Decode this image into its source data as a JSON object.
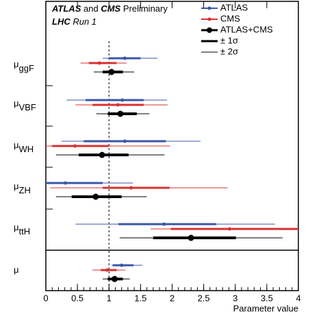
{
  "chart_data": {
    "type": "interval",
    "title_parts": [
      "ATLAS",
      "and",
      "CMS",
      "Preliminary"
    ],
    "subtitle_parts": [
      "LHC",
      "Run 1"
    ],
    "x_label": "Parameter value",
    "category_symbol": "μ",
    "categories": [
      "ggF",
      "VBF",
      "WH",
      "ZH",
      "ttH",
      null
    ],
    "xlim": [
      0,
      4
    ],
    "xticks": [
      0,
      0.5,
      1,
      1.5,
      2,
      2.5,
      3,
      3.5,
      4
    ],
    "reference_line": 1,
    "legend_extra": [
      "± 1σ",
      "± 2σ"
    ],
    "series": [
      {
        "name": "ATLAS",
        "color": "#3a56a8",
        "values": [
          1.25,
          1.21,
          1.25,
          0.31,
          1.87,
          1.2
        ],
        "sigma1": [
          [
            1.0,
            1.5
          ],
          [
            0.63,
            1.55
          ],
          [
            0.6,
            1.9
          ],
          [
            0,
            0.9
          ],
          [
            1.15,
            2.7
          ],
          [
            1.06,
            1.39
          ]
        ],
        "sigma2": [
          [
            0.9,
            1.77
          ],
          [
            0.33,
            1.92
          ],
          [
            0.25,
            2.45
          ],
          [
            0,
            1.38
          ],
          [
            0.47,
            3.63
          ],
          [
            1.04,
            1.53
          ]
        ]
      },
      {
        "name": "CMS",
        "color": "#d83030",
        "values": [
          0.85,
          1.14,
          0.46,
          1.35,
          2.91,
          0.97
        ],
        "sigma1": [
          [
            0.68,
            1.12
          ],
          [
            0.74,
            1.55
          ],
          [
            0.1,
            1.0
          ],
          [
            0.9,
            1.96
          ],
          [
            1.98,
            4
          ],
          [
            0.87,
            1.12
          ]
        ],
        "sigma2": [
          [
            0.55,
            1.28
          ],
          [
            0.47,
            1.93
          ],
          [
            0,
            1.97
          ],
          [
            0.07,
            2.88
          ],
          [
            1.66,
            4
          ],
          [
            0.74,
            1.26
          ]
        ]
      },
      {
        "name": "ATLAS+CMS",
        "color": "#000000",
        "values": [
          1.04,
          1.18,
          0.89,
          0.79,
          2.3,
          1.09
        ],
        "sigma1": [
          [
            0.9,
            1.22
          ],
          [
            0.98,
            1.44
          ],
          [
            0.52,
            1.31
          ],
          [
            0.41,
            1.2
          ],
          [
            1.7,
            3.01
          ],
          [
            0.98,
            1.22
          ]
        ],
        "sigma2": [
          [
            0.76,
            1.4
          ],
          [
            0.8,
            1.64
          ],
          [
            0.16,
            1.88
          ],
          [
            0.16,
            1.6
          ],
          [
            1.17,
            3.75
          ],
          [
            0.9,
            1.33
          ]
        ]
      }
    ]
  }
}
